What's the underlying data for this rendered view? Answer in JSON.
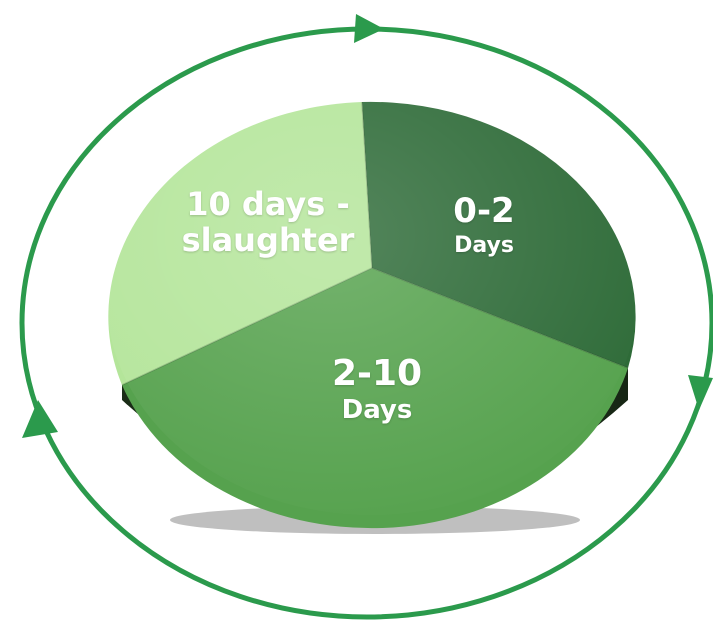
{
  "cycle": {
    "segments": [
      {
        "main": "0-2",
        "sub": "Days",
        "color": "#2e6b38"
      },
      {
        "main": "2-10",
        "sub": "Days",
        "color": "#56a24e"
      },
      {
        "main": "10 days -",
        "sub": "slaughter",
        "color": "#b4e59a"
      }
    ],
    "ring_color": "#2b9a4c",
    "side_color": "#223a1f"
  }
}
